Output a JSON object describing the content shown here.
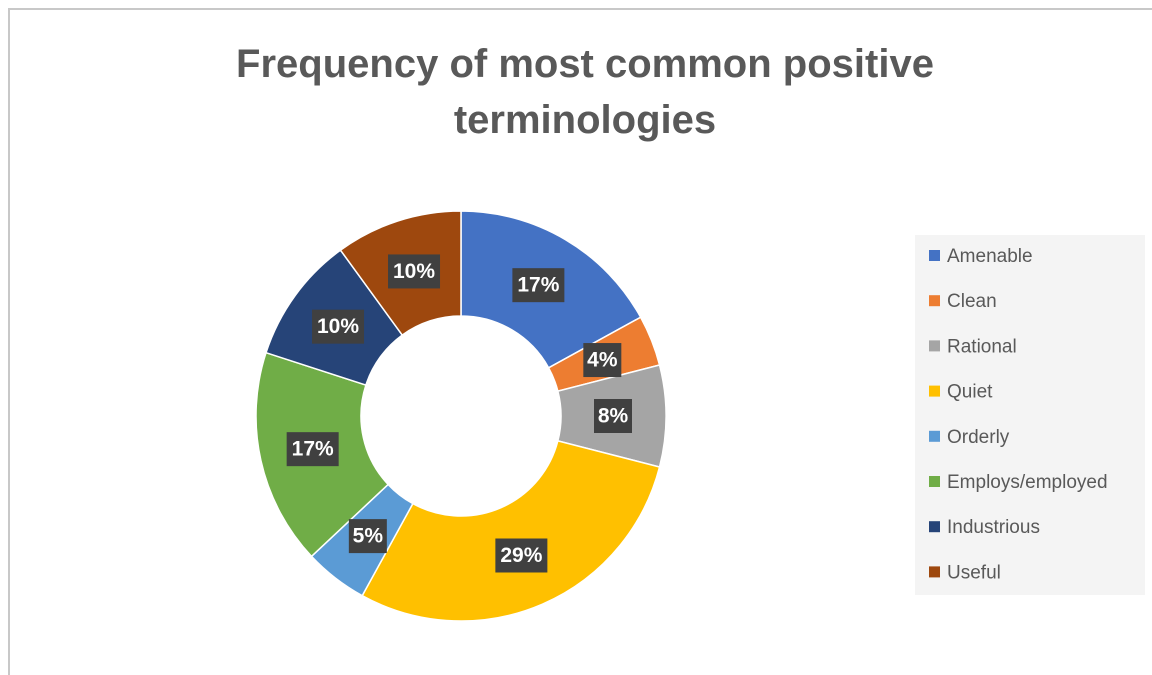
{
  "chart_data": {
    "type": "donut",
    "title": "Frequency of most common positive terminologies",
    "categories": [
      "Amenable",
      "Clean",
      "Rational",
      "Quiet",
      "Orderly",
      "Employs/employed",
      "Industrious",
      "Useful"
    ],
    "values": [
      17,
      4,
      8,
      29,
      5,
      17,
      10,
      10
    ],
    "value_labels": [
      "17%",
      "4%",
      "8%",
      "29%",
      "5%",
      "17%",
      "10%",
      "10%"
    ],
    "colors": [
      "#4472c4",
      "#ed7d31",
      "#a5a5a5",
      "#ffc000",
      "#5b9bd5",
      "#70ad47",
      "#264478",
      "#9e480e"
    ],
    "legend": "right"
  }
}
